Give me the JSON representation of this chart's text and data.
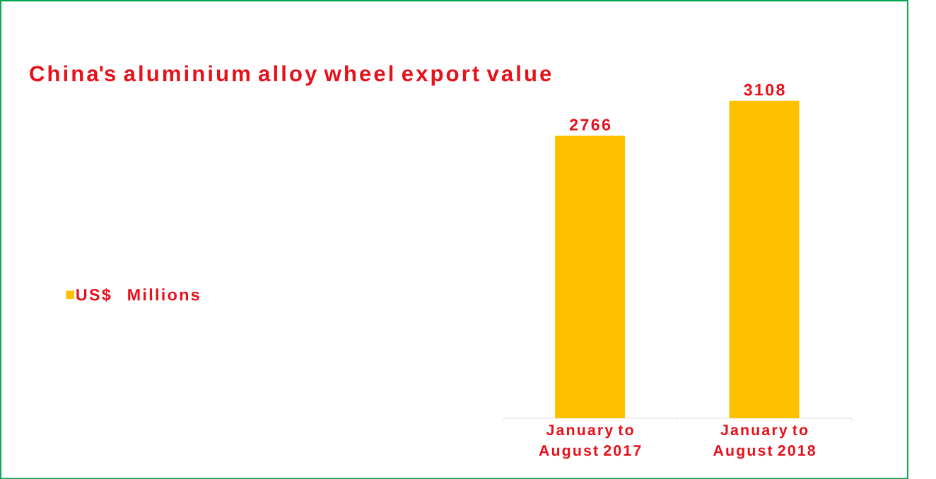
{
  "chart_data": {
    "type": "bar",
    "title": "China's aluminium alloy wheel export value",
    "categories": [
      "January to August 2017",
      "January to August 2018"
    ],
    "series": [
      {
        "name": "US$ Millions",
        "color": "#ffc000",
        "values": [
          2766,
          3108
        ]
      }
    ],
    "tick_labels": "x",
    "data_labels": true,
    "legend": "left"
  }
}
